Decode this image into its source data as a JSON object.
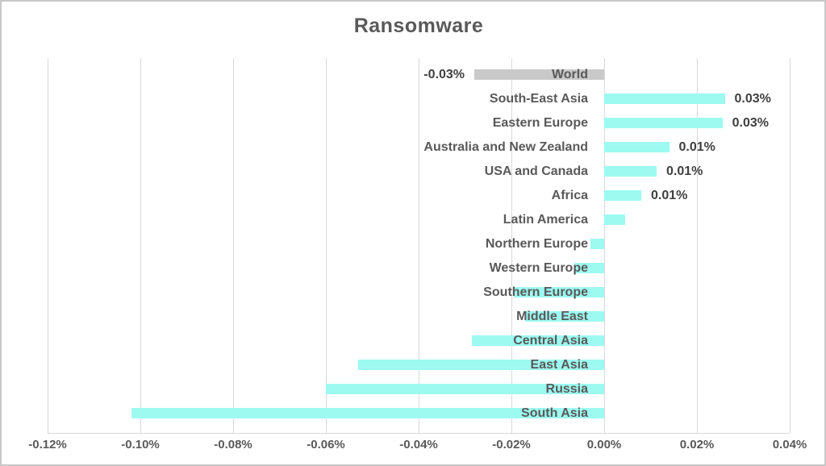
{
  "title": "Ransomware",
  "colors": {
    "region_bar": "#9dfaf1",
    "world_bar": "#c9c9c9",
    "title_text": "#595959",
    "category_text": "#595959",
    "value_text": "#3f3f3f",
    "axis_text": "#595959",
    "gridline": "#d9d9d9",
    "frame_border": "#c8c8c8"
  },
  "chart_data": {
    "type": "bar",
    "orientation": "horizontal",
    "title": "Ransomware",
    "unit": "percent",
    "grid": true,
    "legend": false,
    "xlim": [
      -0.12,
      0.04
    ],
    "x_ticks": [
      {
        "value": -0.12,
        "label": "-0.12%"
      },
      {
        "value": -0.1,
        "label": "-0.10%"
      },
      {
        "value": -0.08,
        "label": "-0.08%"
      },
      {
        "value": -0.06,
        "label": "-0.06%"
      },
      {
        "value": -0.04,
        "label": "-0.04%"
      },
      {
        "value": -0.02,
        "label": "-0.02%"
      },
      {
        "value": 0.0,
        "label": "0.00%"
      },
      {
        "value": 0.02,
        "label": "0.02%"
      },
      {
        "value": 0.04,
        "label": "0.04%"
      }
    ],
    "highlight_category": "World",
    "categories": [
      "World",
      "South-East Asia",
      "Eastern Europe",
      "Australia and New Zealand",
      "USA and Canada",
      "Africa",
      "Latin America",
      "Northern Europe",
      "Western Europe",
      "Southern Europe",
      "Middle East",
      "Central Asia",
      "East Asia",
      "Russia",
      "South Asia"
    ],
    "values": [
      -0.028,
      0.026,
      0.0255,
      0.014,
      0.0113,
      0.008,
      0.0045,
      -0.003,
      -0.0065,
      -0.0195,
      -0.017,
      -0.0285,
      -0.053,
      -0.06,
      -0.102
    ],
    "data_labels": [
      "-0.03%",
      "0.03%",
      "0.03%",
      "0.01%",
      "0.01%",
      "0.01%",
      null,
      null,
      null,
      null,
      null,
      null,
      null,
      null,
      null
    ]
  }
}
